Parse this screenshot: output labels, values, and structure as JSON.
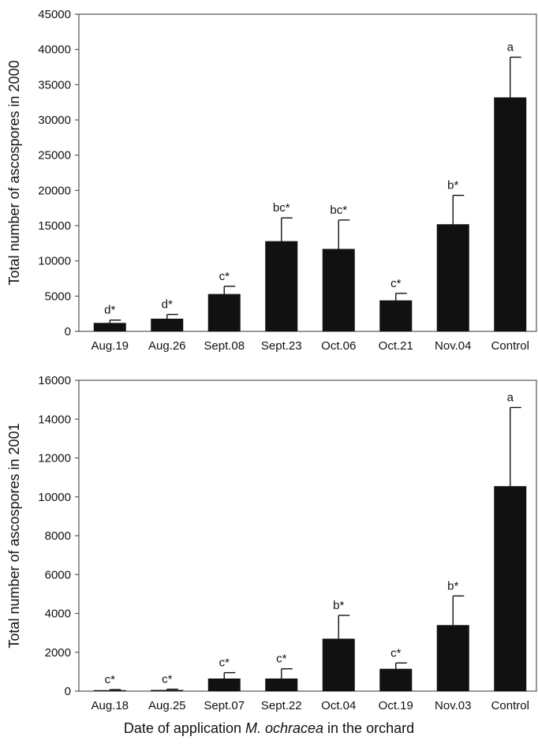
{
  "chart_data": [
    {
      "type": "bar",
      "ylabel": "Total number of ascospores in 2000",
      "ylim": [
        0,
        45000
      ],
      "yticks": [
        0,
        5000,
        10000,
        15000,
        20000,
        25000,
        30000,
        35000,
        40000,
        45000
      ],
      "categories": [
        "Aug.19",
        "Aug.26",
        "Sept.08",
        "Sept.23",
        "Oct.06",
        "Oct.21",
        "Nov.04",
        "Control"
      ],
      "values": [
        1200,
        1800,
        5300,
        12800,
        11700,
        4400,
        15200,
        33200
      ],
      "errors": [
        400,
        600,
        1100,
        3300,
        4100,
        1000,
        4100,
        5700
      ],
      "labels": [
        "d*",
        "d*",
        "c*",
        "bc*",
        "bc*",
        "c*",
        "b*",
        "a"
      ],
      "color": "#111111"
    },
    {
      "type": "bar",
      "ylabel": "Total number of ascospores in 2001",
      "ylim": [
        0,
        16000
      ],
      "yticks": [
        0,
        2000,
        4000,
        6000,
        8000,
        10000,
        12000,
        14000,
        16000
      ],
      "categories": [
        "Aug.18",
        "Aug.25",
        "Sept.07",
        "Sept.22",
        "Oct.04",
        "Oct.19",
        "Nov.03",
        "Control"
      ],
      "values": [
        50,
        60,
        650,
        650,
        2700,
        1150,
        3400,
        10550
      ],
      "errors": [
        30,
        40,
        300,
        500,
        1200,
        300,
        1500,
        4050
      ],
      "labels": [
        "c*",
        "c*",
        "c*",
        "c*",
        "b*",
        "c*",
        "b*",
        "a"
      ],
      "color": "#111111"
    }
  ],
  "xlabel": {
    "prefix": "Date of application ",
    "species": "M. ochracea",
    "suffix": " in the orchard"
  }
}
